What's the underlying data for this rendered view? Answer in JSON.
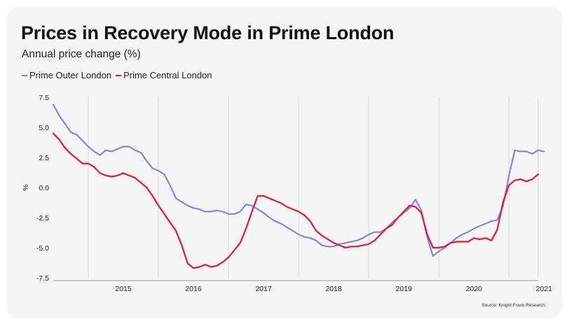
{
  "colors": {
    "outer": "#8b86c6",
    "central": "#e0193a",
    "grid": "#d8d8d8",
    "card": "#f5f5f5"
  },
  "chart_data": {
    "type": "line",
    "title": "Prices in Recovery Mode in Prime London",
    "subtitle": "Annual price change (%)",
    "ylabel": "%",
    "xlabel": "",
    "source": "Source: Knight Frank Research",
    "ylim": [
      -7.5,
      7.5
    ],
    "yticks": [
      7.5,
      5.0,
      2.5,
      0.0,
      -2.5,
      -5.0,
      -7.5
    ],
    "ytick_labels": [
      "7.5",
      "5.0",
      "2.5",
      "0.0",
      "-2.5",
      "-5.0",
      "-7.5"
    ],
    "xlim": [
      "2014-07",
      "2021-06"
    ],
    "xtick_labels": [
      "2015",
      "2016",
      "2017",
      "2018",
      "2019",
      "2020",
      "2021"
    ],
    "grid": "vertical",
    "legend_position": "top-left",
    "series": [
      {
        "name": "Prime Outer London",
        "color": "#8b86c6",
        "points": [
          [
            "2014-07",
            6.9
          ],
          [
            "2014-08",
            6.0
          ],
          [
            "2014-09",
            5.3
          ],
          [
            "2014-10",
            4.6
          ],
          [
            "2014-11",
            4.4
          ],
          [
            "2014-12",
            3.9
          ],
          [
            "2015-01",
            3.4
          ],
          [
            "2015-02",
            3.0
          ],
          [
            "2015-03",
            2.7
          ],
          [
            "2015-04",
            3.1
          ],
          [
            "2015-05",
            3.0
          ],
          [
            "2015-06",
            3.2
          ],
          [
            "2015-07",
            3.4
          ],
          [
            "2015-08",
            3.4
          ],
          [
            "2015-09",
            3.1
          ],
          [
            "2015-10",
            2.9
          ],
          [
            "2015-11",
            2.2
          ],
          [
            "2015-12",
            1.6
          ],
          [
            "2016-01",
            1.4
          ],
          [
            "2016-02",
            1.1
          ],
          [
            "2016-03",
            0.2
          ],
          [
            "2016-04",
            -0.9
          ],
          [
            "2016-05",
            -1.2
          ],
          [
            "2016-06",
            -1.5
          ],
          [
            "2016-07",
            -1.7
          ],
          [
            "2016-08",
            -1.8
          ],
          [
            "2016-09",
            -2.0
          ],
          [
            "2016-10",
            -2.0
          ],
          [
            "2016-11",
            -1.9
          ],
          [
            "2016-12",
            -2.0
          ],
          [
            "2017-01",
            -2.2
          ],
          [
            "2017-02",
            -2.2
          ],
          [
            "2017-03",
            -2.0
          ],
          [
            "2017-04",
            -1.4
          ],
          [
            "2017-05",
            -1.5
          ],
          [
            "2017-06",
            -1.8
          ],
          [
            "2017-07",
            -2.1
          ],
          [
            "2017-08",
            -2.5
          ],
          [
            "2017-09",
            -2.8
          ],
          [
            "2017-10",
            -3.0
          ],
          [
            "2017-11",
            -3.3
          ],
          [
            "2017-12",
            -3.6
          ],
          [
            "2018-01",
            -3.9
          ],
          [
            "2018-02",
            -4.1
          ],
          [
            "2018-03",
            -4.2
          ],
          [
            "2018-04",
            -4.4
          ],
          [
            "2018-05",
            -4.8
          ],
          [
            "2018-06",
            -4.9
          ],
          [
            "2018-07",
            -4.9
          ],
          [
            "2018-08",
            -4.7
          ],
          [
            "2018-09",
            -4.6
          ],
          [
            "2018-10",
            -4.5
          ],
          [
            "2018-11",
            -4.4
          ],
          [
            "2018-12",
            -4.2
          ],
          [
            "2019-01",
            -3.9
          ],
          [
            "2019-02",
            -3.7
          ],
          [
            "2019-03",
            -3.7
          ],
          [
            "2019-04",
            -3.4
          ],
          [
            "2019-05",
            -2.9
          ],
          [
            "2019-06",
            -2.5
          ],
          [
            "2019-07",
            -2.1
          ],
          [
            "2019-08",
            -1.7
          ],
          [
            "2019-09",
            -1.0
          ],
          [
            "2019-10",
            -1.9
          ],
          [
            "2019-11",
            -4.1
          ],
          [
            "2019-12",
            -5.7
          ],
          [
            "2020-01",
            -5.3
          ],
          [
            "2020-02",
            -5.0
          ],
          [
            "2020-03",
            -4.6
          ],
          [
            "2020-04",
            -4.2
          ],
          [
            "2020-05",
            -3.9
          ],
          [
            "2020-06",
            -3.7
          ],
          [
            "2020-07",
            -3.4
          ],
          [
            "2020-08",
            -3.2
          ],
          [
            "2020-09",
            -3.0
          ],
          [
            "2020-10",
            -2.8
          ],
          [
            "2020-11",
            -2.7
          ],
          [
            "2020-12",
            -1.5
          ],
          [
            "2021-01",
            1.0
          ],
          [
            "2021-02",
            3.1
          ],
          [
            "2021-03",
            3.0
          ],
          [
            "2021-04",
            3.0
          ],
          [
            "2021-05",
            2.8
          ],
          [
            "2021-06",
            3.1
          ],
          [
            "2021-07",
            3.0
          ]
        ]
      },
      {
        "name": "Prime Central London",
        "color": "#e0193a",
        "points": [
          [
            "2014-07",
            4.5
          ],
          [
            "2014-08",
            4.0
          ],
          [
            "2014-09",
            3.3
          ],
          [
            "2014-10",
            2.8
          ],
          [
            "2014-11",
            2.4
          ],
          [
            "2014-12",
            2.0
          ],
          [
            "2015-01",
            2.0
          ],
          [
            "2015-02",
            1.7
          ],
          [
            "2015-03",
            1.2
          ],
          [
            "2015-04",
            1.0
          ],
          [
            "2015-05",
            0.9
          ],
          [
            "2015-06",
            1.0
          ],
          [
            "2015-07",
            1.2
          ],
          [
            "2015-08",
            1.0
          ],
          [
            "2015-09",
            0.8
          ],
          [
            "2015-10",
            0.4
          ],
          [
            "2015-11",
            0.0
          ],
          [
            "2015-12",
            -0.7
          ],
          [
            "2016-01",
            -1.5
          ],
          [
            "2016-02",
            -2.2
          ],
          [
            "2016-03",
            -2.9
          ],
          [
            "2016-04",
            -3.6
          ],
          [
            "2016-05",
            -4.8
          ],
          [
            "2016-06",
            -6.3
          ],
          [
            "2016-07",
            -6.7
          ],
          [
            "2016-08",
            -6.6
          ],
          [
            "2016-09",
            -6.4
          ],
          [
            "2016-10",
            -6.6
          ],
          [
            "2016-11",
            -6.5
          ],
          [
            "2016-12",
            -6.2
          ],
          [
            "2017-01",
            -5.8
          ],
          [
            "2017-02",
            -5.2
          ],
          [
            "2017-03",
            -4.6
          ],
          [
            "2017-04",
            -3.4
          ],
          [
            "2017-05",
            -2.0
          ],
          [
            "2017-06",
            -0.7
          ],
          [
            "2017-07",
            -0.7
          ],
          [
            "2017-08",
            -0.9
          ],
          [
            "2017-09",
            -1.1
          ],
          [
            "2017-10",
            -1.3
          ],
          [
            "2017-11",
            -1.6
          ],
          [
            "2017-12",
            -1.8
          ],
          [
            "2018-01",
            -2.0
          ],
          [
            "2018-02",
            -2.3
          ],
          [
            "2018-03",
            -2.8
          ],
          [
            "2018-04",
            -3.6
          ],
          [
            "2018-05",
            -4.0
          ],
          [
            "2018-06",
            -4.3
          ],
          [
            "2018-07",
            -4.6
          ],
          [
            "2018-08",
            -4.8
          ],
          [
            "2018-09",
            -5.0
          ],
          [
            "2018-10",
            -4.9
          ],
          [
            "2018-11",
            -4.9
          ],
          [
            "2018-12",
            -4.8
          ],
          [
            "2019-01",
            -4.7
          ],
          [
            "2019-02",
            -4.4
          ],
          [
            "2019-03",
            -3.9
          ],
          [
            "2019-04",
            -3.4
          ],
          [
            "2019-05",
            -3.1
          ],
          [
            "2019-06",
            -2.5
          ],
          [
            "2019-07",
            -2.0
          ],
          [
            "2019-08",
            -1.5
          ],
          [
            "2019-09",
            -1.6
          ],
          [
            "2019-10",
            -2.1
          ],
          [
            "2019-11",
            -3.9
          ],
          [
            "2019-12",
            -5.0
          ],
          [
            "2020-01",
            -5.0
          ],
          [
            "2020-02",
            -4.9
          ],
          [
            "2020-03",
            -4.6
          ],
          [
            "2020-04",
            -4.5
          ],
          [
            "2020-05",
            -4.5
          ],
          [
            "2020-06",
            -4.5
          ],
          [
            "2020-07",
            -4.2
          ],
          [
            "2020-08",
            -4.3
          ],
          [
            "2020-09",
            -4.2
          ],
          [
            "2020-10",
            -4.4
          ],
          [
            "2020-11",
            -3.5
          ],
          [
            "2020-12",
            -1.2
          ],
          [
            "2021-01",
            0.2
          ],
          [
            "2021-02",
            0.6
          ],
          [
            "2021-03",
            0.7
          ],
          [
            "2021-04",
            0.5
          ],
          [
            "2021-05",
            0.7
          ],
          [
            "2021-06",
            1.1
          ]
        ]
      }
    ]
  }
}
